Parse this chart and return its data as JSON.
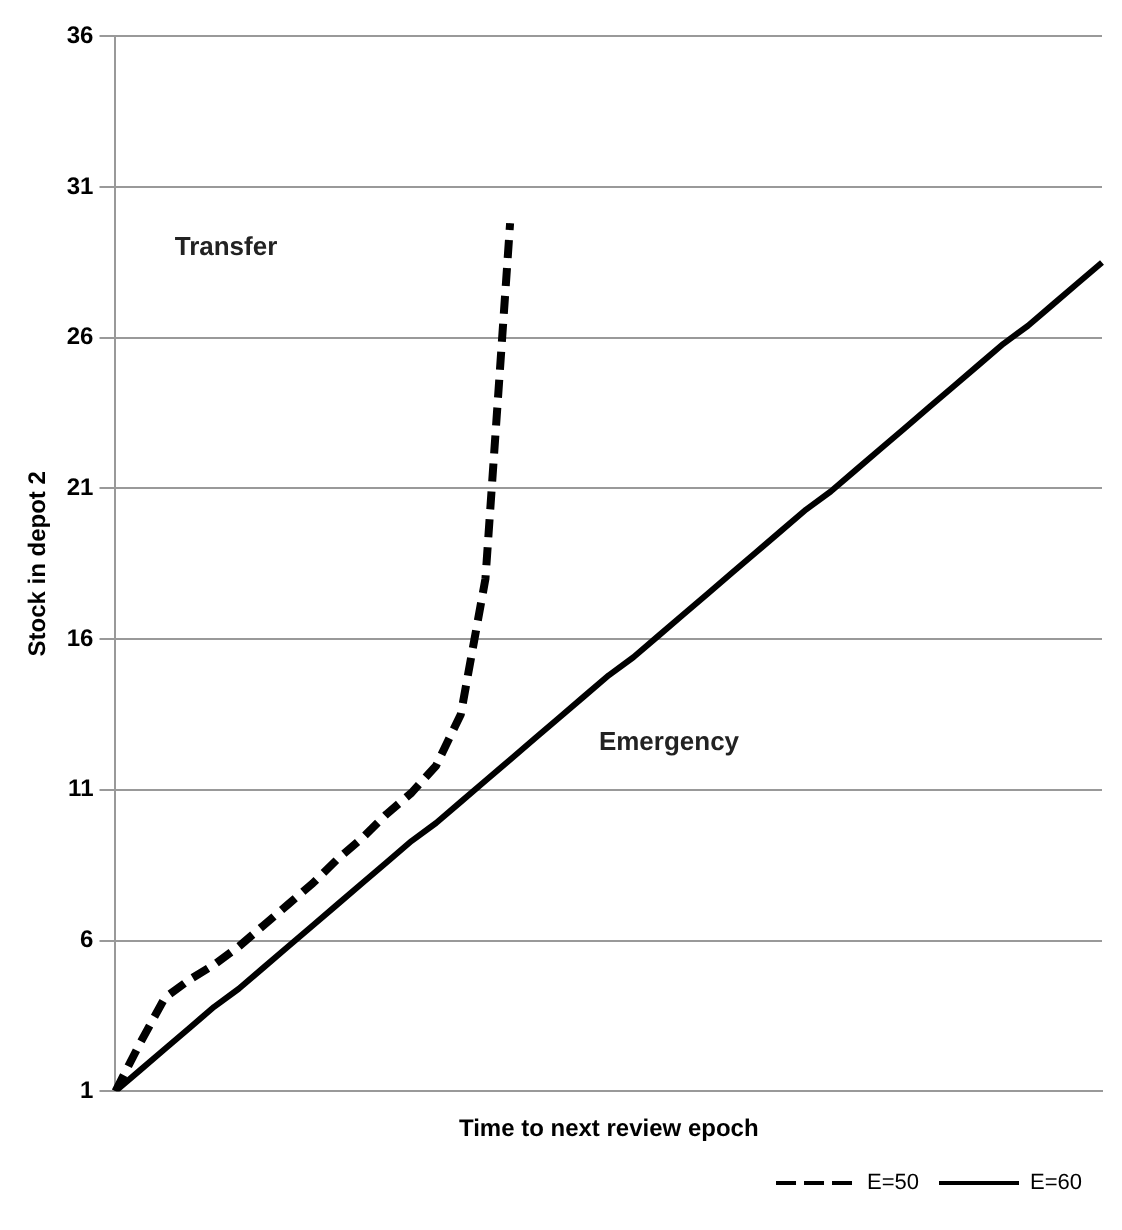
{
  "chart_data": {
    "type": "line",
    "xlabel": "Time to next review epoch",
    "ylabel": "Stock in depot 2",
    "categories": [
      null,
      null,
      null,
      null,
      null,
      null,
      null,
      null,
      null,
      null,
      null,
      null,
      null,
      null,
      null,
      null,
      null,
      null,
      null,
      null,
      null,
      null,
      null,
      null,
      null,
      null,
      null,
      null,
      null,
      null,
      null,
      null,
      null,
      null,
      null,
      null,
      null,
      null,
      null,
      null,
      null
    ],
    "series": [
      {
        "name": "E=50",
        "color": "#000000",
        "line_style": "dashed",
        "values": [
          1,
          2.6,
          4.1,
          4.7,
          5.2,
          5.8,
          6.5,
          7.2,
          7.9,
          8.7,
          9.4,
          10.2,
          10.9,
          11.8,
          13.5,
          18,
          29.8,
          null,
          null,
          null,
          null,
          null,
          null,
          null,
          null,
          null,
          null,
          null,
          null,
          null,
          null,
          null,
          null,
          null,
          null,
          null,
          null,
          null,
          null,
          null,
          null
        ]
      },
      {
        "name": "E=60",
        "color": "#000000",
        "line_style": "solid",
        "values": [
          1,
          1.7,
          2.4,
          3.1,
          3.8,
          4.4,
          5.1,
          5.8,
          6.5,
          7.2,
          7.9,
          8.6,
          9.3,
          9.9,
          10.6,
          11.3,
          12,
          12.7,
          13.4,
          14.1,
          14.8,
          15.4,
          16.1,
          16.8,
          17.5,
          18.2,
          18.9,
          19.6,
          20.3,
          20.9,
          21.6,
          22.3,
          23,
          23.7,
          24.4,
          25.1,
          25.8,
          26.4,
          27.1,
          27.8,
          28.5
        ]
      }
    ],
    "ylim": [
      1,
      36
    ],
    "yticks": [
      1,
      6,
      11,
      16,
      21,
      26,
      31,
      36
    ],
    "grid": "y",
    "legend": "bottom right",
    "marker": "none",
    "annotations": [
      "Transfer",
      "Emergency"
    ]
  }
}
